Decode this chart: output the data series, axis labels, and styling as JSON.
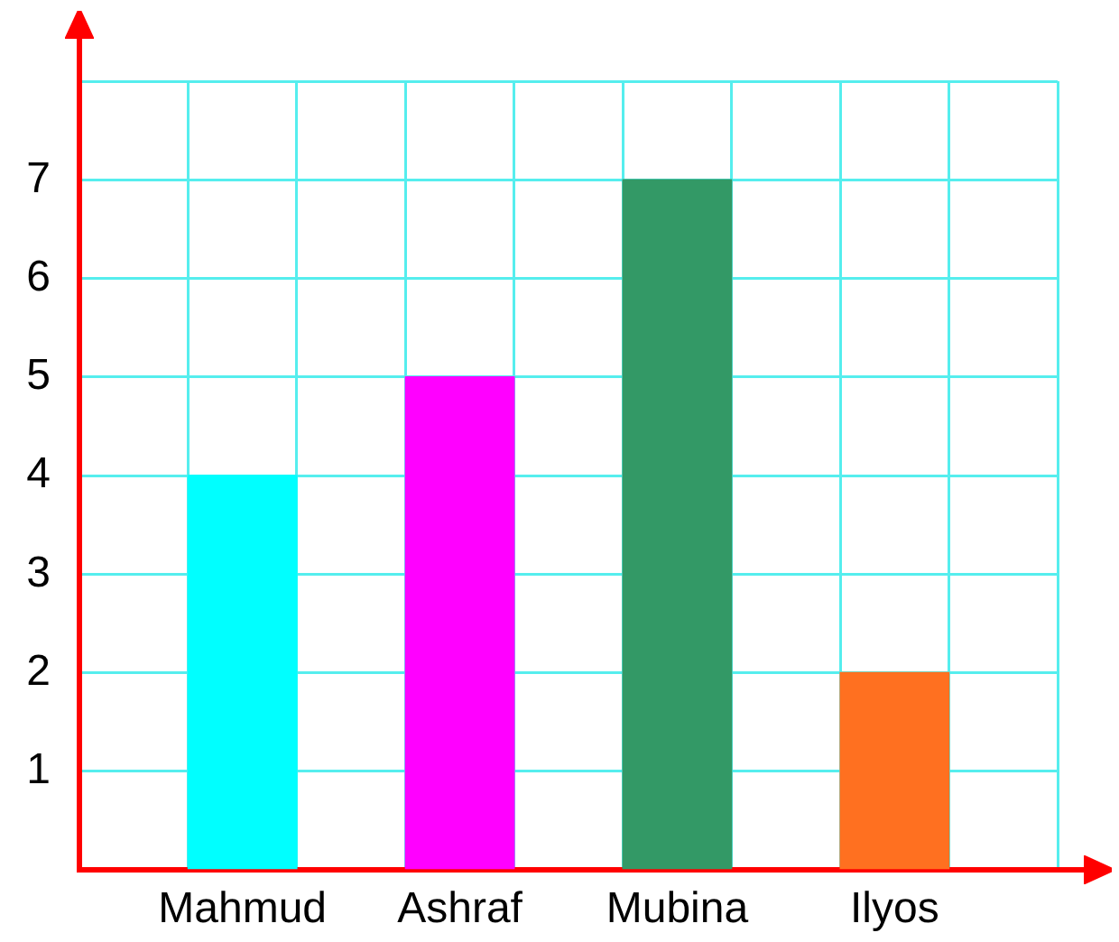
{
  "chart_data": {
    "type": "bar",
    "categories": [
      null,
      "Mahmud",
      null,
      "Ashraf",
      null,
      "Mubina",
      null,
      "Ilyos",
      null
    ],
    "values": [
      null,
      4,
      null,
      5,
      null,
      7,
      null,
      2,
      null
    ],
    "colors": [
      null,
      "#00ffff",
      null,
      "#ff00ff",
      null,
      "#339966",
      null,
      "#ff7020",
      null
    ],
    "ylim": [
      0,
      8
    ],
    "yticks": [
      {
        "value": 0,
        "label": null
      },
      1,
      2,
      3,
      4,
      5,
      6,
      7,
      {
        "value": 8,
        "label": null
      }
    ],
    "grid": true
  }
}
